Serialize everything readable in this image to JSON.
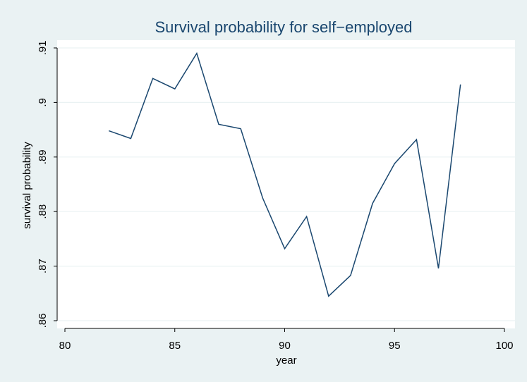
{
  "chart_data": {
    "type": "line",
    "title": "Survival probability for self−employed",
    "xlabel": "year",
    "ylabel": "survival probability",
    "xlim": [
      80,
      100
    ],
    "ylim": [
      0.86,
      0.91
    ],
    "xticks": [
      80,
      85,
      90,
      95,
      100
    ],
    "xtick_labels": [
      "80",
      "85",
      "90",
      "95",
      "100"
    ],
    "yticks": [
      0.86,
      0.87,
      0.88,
      0.89,
      0.9,
      0.91
    ],
    "ytick_labels": [
      ".86",
      ".87",
      ".88",
      ".89",
      ".9",
      ".91"
    ],
    "grid": true,
    "legend": "none",
    "series": [
      {
        "x": [
          82,
          83,
          84,
          85,
          86,
          87,
          88,
          89,
          90,
          91,
          92,
          93,
          94,
          95,
          96,
          97,
          98
        ],
        "y": [
          0.8948,
          0.8934,
          0.9044,
          0.9025,
          0.909,
          0.896,
          0.8952,
          0.8825,
          0.8732,
          0.8791,
          0.8645,
          0.8683,
          0.8815,
          0.8888,
          0.8932,
          0.8696,
          0.9033
        ]
      }
    ],
    "colors": {
      "background": "#eaf2f3",
      "plot_background": "#ffffff",
      "line": "#1a476f",
      "title": "#1a476f",
      "grid": "#eaf2f3"
    }
  }
}
